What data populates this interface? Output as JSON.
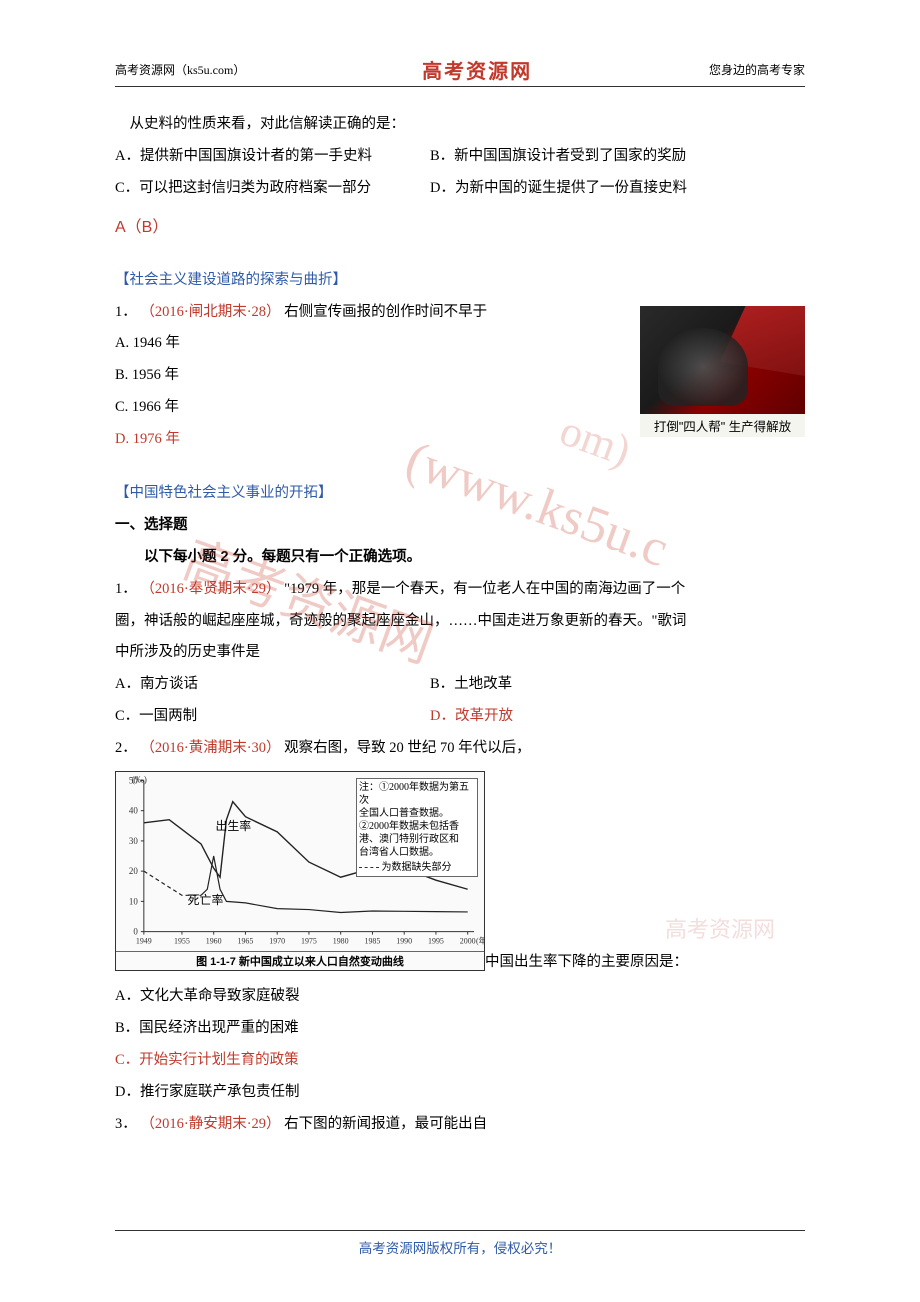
{
  "header": {
    "left": "高考资源网（ks5u.com）",
    "center": "高考资源网",
    "right": "您身边的高考专家"
  },
  "intro_question": {
    "stem": "从史料的性质来看，对此信解读正确的是：",
    "opt_a": "A．提供新中国国旗设计者的第一手史料",
    "opt_b": "B．新中国国旗设计者受到了国家的奖励",
    "opt_c": "C．可以把这封信归类为政府档案一部分",
    "opt_d": "D．为新中国的诞生提供了一份直接史料",
    "answer": "A（B）"
  },
  "section1": {
    "title": "【社会主义建设道路的探索与曲折】",
    "q1": {
      "source": "（2016·闸北期末·28）",
      "num": "1．",
      "stem": "右侧宣传画报的创作时间不早于",
      "opt_a": "A. 1946 年",
      "opt_b": "B. 1956 年",
      "opt_c": "C. 1966 年",
      "opt_d": "D. 1976 年"
    },
    "poster_caption": "打倒\"四人帮\"  生产得解放"
  },
  "section2": {
    "title": "【中国特色社会主义事业的开拓】",
    "heading": "一、选择题",
    "instruction": "以下每小题 2 分。每题只有一个正确选项。",
    "q1": {
      "num": "1．",
      "source": "（2016·奉贤期末·29）",
      "stem1": "\"1979 年，那是一个春天，有一位老人在中国的南海边画了一个",
      "stem2": "圈，神话般的崛起座座城，奇迹般的聚起座座金山，……中国走进万象更新的春天。\"歌词",
      "stem3": "中所涉及的历史事件是",
      "opt_a": "A．南方谈话",
      "opt_b": "B．土地改革",
      "opt_c": "C．一国两制",
      "opt_d": "D．改革开放"
    },
    "q2": {
      "num": "2．",
      "source": "（2016·黄浦期末·30）",
      "stem": "观察右图，导致 20 世纪 70 年代以后，",
      "after_chart": "中国出生率下降的主要原因是：",
      "opt_a": "A．文化大革命导致家庭破裂",
      "opt_b": "B．国民经济出现严重的困难",
      "opt_c": "C．开始实行计划生育的政策",
      "opt_d": "D．推行家庭联产承包责任制"
    },
    "q3": {
      "num": "3．",
      "source": "（2016·静安期末·29）",
      "stem": "右下图的新闻报道，最可能出自"
    }
  },
  "chart": {
    "note_lines": [
      "注：①2000年数据为第五次",
      "全国人口普查数据。",
      "②2000年数据未包括香",
      "港、澳门特别行政区和",
      "台湾省人口数据。",
      "为数据缺失部分"
    ],
    "caption": "图 1-1-7  新中国成立以来人口自然变动曲线",
    "birth_label": "出生率",
    "death_label": "死亡率",
    "y_unit": "(‰)",
    "y_ticks": [
      0,
      10,
      20,
      30,
      40,
      50
    ],
    "x_ticks": [
      1949,
      1955,
      1960,
      1965,
      1970,
      1975,
      1980,
      1985,
      1990,
      1995,
      2000
    ],
    "x_unit": "(年)",
    "birth_series": {
      "years": [
        1949,
        1953,
        1958,
        1959,
        1960,
        1961,
        1962,
        1963,
        1965,
        1970,
        1975,
        1980,
        1985,
        1990,
        1995,
        2000
      ],
      "values": [
        36,
        37,
        29,
        25,
        21,
        18,
        37,
        43,
        38,
        33,
        23,
        18,
        21,
        21,
        17,
        14
      ]
    },
    "death_series": {
      "years": [
        1949,
        1955,
        1958,
        1959,
        1960,
        1961,
        1962,
        1965,
        1970,
        1975,
        1980,
        1985,
        1990,
        1995,
        2000
      ],
      "values": [
        20,
        12,
        12,
        14,
        25,
        14,
        10,
        9.5,
        7.6,
        7.3,
        6.3,
        6.8,
        6.7,
        6.6,
        6.5
      ]
    },
    "line_color": "#222222",
    "background": "#fafafa"
  },
  "watermark": {
    "wm1": "高考资源网",
    "wm2": "(www.ks5u.c",
    "wm3": "om)",
    "light": "高考资源网"
  },
  "footer": "高考资源网版权所有，侵权必究！"
}
